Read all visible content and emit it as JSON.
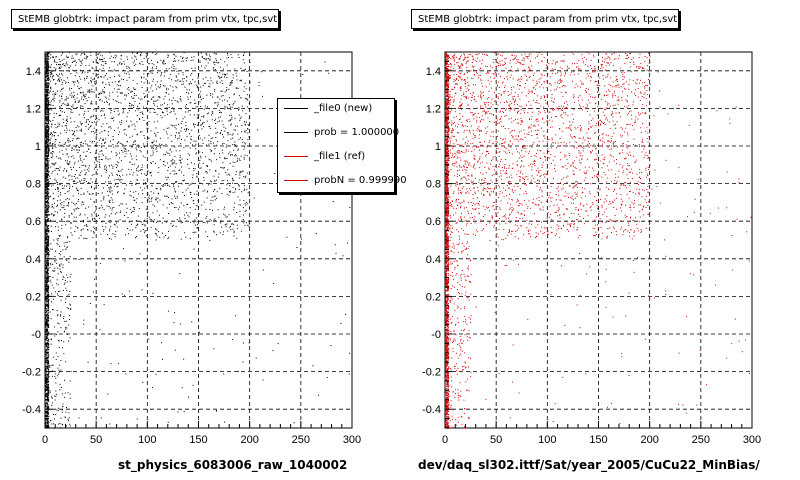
{
  "panels": [
    {
      "title": "StEMB globtrk: impact param from prim vtx, tpc,svt",
      "xtitle": "st_physics_6083006_raw_1040002"
    },
    {
      "title": "StEMB globtrk: impact param from prim vtx, tpc,svt",
      "xtitle": "dev/daq_sl302.ittf/Sat/year_2005/CuCu22_MinBias/"
    }
  ],
  "legend": {
    "entries": [
      {
        "label": "_file0 (new)",
        "color": "#000000"
      },
      {
        "label": "prob = 1.000000",
        "color": "#000000"
      },
      {
        "label": "_file1 (ref)",
        "color": "#cc0000"
      },
      {
        "label": "probN = 0.999990",
        "color": "#cc0000"
      }
    ]
  },
  "footer": "",
  "chart_data": [
    {
      "type": "scatter",
      "title": "StEMB globtrk: impact param from prim vtx, tpc,svt",
      "xlabel": "st_physics_6083006_raw_1040002",
      "ylabel": "",
      "xlim": [
        0,
        300
      ],
      "ylim": [
        -0.5,
        1.5
      ],
      "x_ticks": [
        0,
        50,
        100,
        150,
        200,
        250,
        300
      ],
      "y_ticks": [
        "1.4",
        "1.2",
        "1",
        "0.8",
        "0.6",
        "0.4",
        "0.2",
        "-0",
        "-0.2",
        "-0.4"
      ],
      "grid": true,
      "legend_position": "top-right",
      "series": [
        {
          "name": "_file0 (new)",
          "color": "#000000",
          "description": "dense band near x=0 spanning all y; cloud of points x 0-200 concentrated in y 0.5-1.5"
        }
      ]
    },
    {
      "type": "scatter",
      "title": "StEMB globtrk: impact param from prim vtx, tpc,svt",
      "xlabel": "dev/daq_sl302.ittf/Sat/year_2005/CuCu22_MinBias/",
      "ylabel": "",
      "xlim": [
        0,
        300
      ],
      "ylim": [
        -0.5,
        1.5
      ],
      "x_ticks": [
        0,
        50,
        100,
        150,
        200,
        250,
        300
      ],
      "y_ticks": [
        "1.4",
        "1.2",
        "1",
        "0.8",
        "0.6",
        "0.4",
        "0.2",
        "-0",
        "-0.2",
        "-0.4"
      ],
      "grid": true,
      "series": [
        {
          "name": "_file1 (ref)",
          "color": "#cc0000",
          "description": "dense band near x=0 spanning all y; cloud of points x 0-200 concentrated in y 0.5-1.5"
        }
      ]
    }
  ]
}
